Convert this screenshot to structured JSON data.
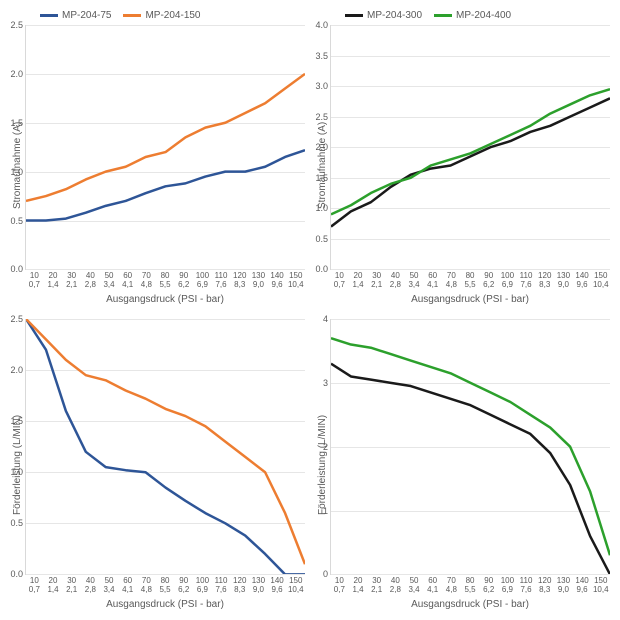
{
  "xlabel": "Ausgangsdruck (PSI - bar)",
  "xticks_psi": [
    "10",
    "20",
    "30",
    "40",
    "50",
    "60",
    "70",
    "80",
    "90",
    "100",
    "110",
    "120",
    "130",
    "140",
    "150"
  ],
  "xticks_bar": [
    "0,7",
    "1,4",
    "2,1",
    "2,8",
    "3,4",
    "4,1",
    "4,8",
    "5,5",
    "6,2",
    "6,9",
    "7,6",
    "8,3",
    "9,0",
    "9,6",
    "10,4"
  ],
  "colors": {
    "s75": "#2e5597",
    "s150": "#ed7d31",
    "s300": "#1a1a1a",
    "s400": "#2ca02c",
    "grid": "#e6e6e6",
    "text": "#595959"
  },
  "line_width": 2.5,
  "panels": [
    {
      "id": "tl",
      "ylabel": "Stromaufnahme (A)",
      "ymin": 0,
      "ymax": 2.5,
      "ystep": 0.5,
      "decimals": 1,
      "legend": [
        {
          "label": "MP-204-75",
          "color": "s75"
        },
        {
          "label": "MP-204-150",
          "color": "s150"
        }
      ],
      "series": [
        {
          "color": "s75",
          "values": [
            0.5,
            0.5,
            0.52,
            0.58,
            0.65,
            0.7,
            0.78,
            0.85,
            0.88,
            0.95,
            1.0,
            1.0,
            1.05,
            1.15,
            1.22
          ]
        },
        {
          "color": "s150",
          "values": [
            0.7,
            0.75,
            0.82,
            0.92,
            1.0,
            1.05,
            1.15,
            1.2,
            1.35,
            1.45,
            1.5,
            1.6,
            1.7,
            1.85,
            2.0
          ]
        }
      ]
    },
    {
      "id": "tr",
      "ylabel": "Stromaufnahme (A)",
      "ymin": 0,
      "ymax": 4.0,
      "ystep": 0.5,
      "decimals": 1,
      "legend": [
        {
          "label": "MP-204-300",
          "color": "s300"
        },
        {
          "label": "MP-204-400",
          "color": "s400"
        }
      ],
      "series": [
        {
          "color": "s300",
          "values": [
            0.7,
            0.95,
            1.1,
            1.35,
            1.55,
            1.65,
            1.7,
            1.85,
            2.0,
            2.1,
            2.25,
            2.35,
            2.5,
            2.65,
            2.8
          ]
        },
        {
          "color": "s400",
          "values": [
            0.9,
            1.05,
            1.25,
            1.4,
            1.5,
            1.7,
            1.8,
            1.9,
            2.05,
            2.2,
            2.35,
            2.55,
            2.7,
            2.85,
            2.95
          ]
        }
      ]
    },
    {
      "id": "bl",
      "ylabel": "Förderleistung (L/MIN)",
      "ymin": 0,
      "ymax": 2.5,
      "ystep": 0.5,
      "decimals": 1,
      "legend": null,
      "series": [
        {
          "color": "s75",
          "values": [
            2.5,
            2.2,
            1.6,
            1.2,
            1.05,
            1.02,
            1.0,
            0.85,
            0.72,
            0.6,
            0.5,
            0.38,
            0.2,
            0.0,
            0.0
          ]
        },
        {
          "color": "s150",
          "values": [
            2.5,
            2.3,
            2.1,
            1.95,
            1.9,
            1.8,
            1.72,
            1.62,
            1.55,
            1.45,
            1.3,
            1.15,
            1.0,
            0.6,
            0.1
          ]
        }
      ]
    },
    {
      "id": "br",
      "ylabel": "Förderleistung (L/MIN)",
      "ymin": 0,
      "ymax": 4.0,
      "ystep": 1.0,
      "decimals": 0,
      "legend": null,
      "series": [
        {
          "color": "s300",
          "values": [
            3.3,
            3.1,
            3.05,
            3.0,
            2.95,
            2.85,
            2.75,
            2.65,
            2.5,
            2.35,
            2.2,
            1.9,
            1.4,
            0.6,
            0.0
          ]
        },
        {
          "color": "s400",
          "values": [
            3.7,
            3.6,
            3.55,
            3.45,
            3.35,
            3.25,
            3.15,
            3.0,
            2.85,
            2.7,
            2.5,
            2.3,
            2.0,
            1.3,
            0.3
          ]
        }
      ]
    }
  ]
}
